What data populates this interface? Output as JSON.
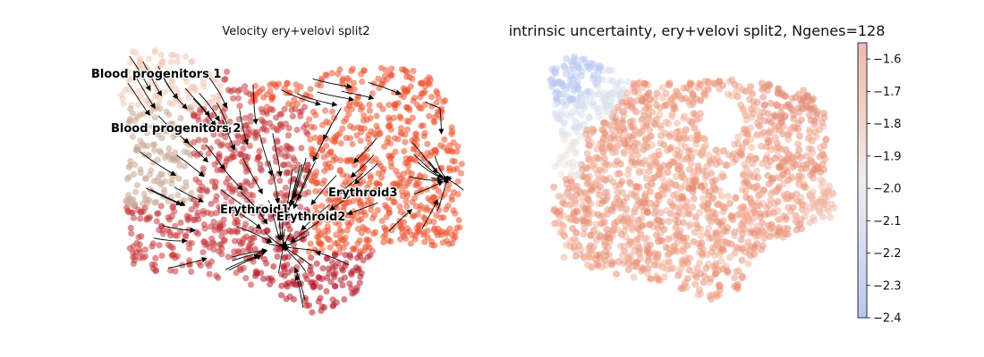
{
  "chart_data": [
    {
      "type": "scatter",
      "title": "Velocity ery+velovi split2",
      "annotations": [
        "Blood progenitors 1",
        "Blood progenitors 2",
        "Erythroid1",
        "Erythroid2",
        "Erythroid3"
      ],
      "cluster_colors": {
        "Blood progenitors 1": "#f0c8b6",
        "Blood progenitors 2": "#c9a793",
        "Erythroid1": "#c7383d",
        "Erythroid2": "#b71c2a",
        "Erythroid3": "#ec5330"
      },
      "streamlines": true,
      "grid": false,
      "axes_visible": false
    },
    {
      "type": "scatter",
      "title": "intrinsic uncertainty, ery+velovi split2, Ngenes=128",
      "colormap": "coolwarm",
      "colorbar": {
        "range": [
          -2.4,
          -1.55
        ],
        "ticks": [
          -1.6,
          -1.7,
          -1.8,
          -1.9,
          -2.0,
          -2.1,
          -2.2,
          -2.3,
          -2.4
        ],
        "tick_labels": [
          "−1.6",
          "−1.7",
          "−1.8",
          "−1.9",
          "−2.0",
          "−2.1",
          "−2.2",
          "−2.3",
          "−2.4"
        ]
      },
      "grid": false,
      "axes_visible": false
    }
  ]
}
